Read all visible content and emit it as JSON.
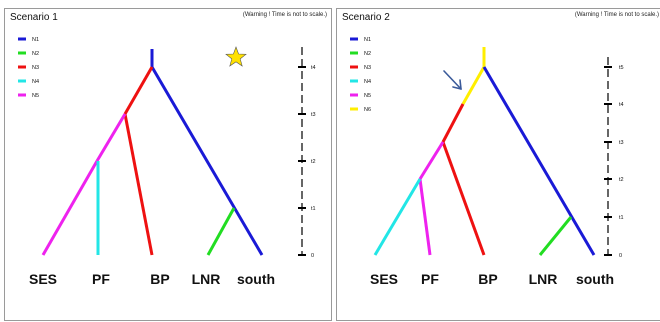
{
  "colors": {
    "N1": "#1a1ad6",
    "N2": "#22dd22",
    "N3": "#ee1111",
    "N4": "#22e6e6",
    "N5": "#ee22ee",
    "N6": "#ffee00",
    "star": "#ffe100",
    "arrow": "#3a5a9a",
    "axis": "#000000"
  },
  "panels": [
    {
      "title": "Scenario 1",
      "warning": "(Warning ! Time is not to scale.)",
      "legend": [
        "N1",
        "N2",
        "N3",
        "N4",
        "N5"
      ],
      "time_axis": [
        "t4",
        "t3",
        "t2",
        "t1",
        "0"
      ],
      "tips": [
        "SES",
        "PF",
        "BP",
        "LNR",
        "south"
      ],
      "marker": "star-icon"
    },
    {
      "title": "Scenario 2",
      "warning": "(Warning ! Time is not to scale.)",
      "legend": [
        "N1",
        "N2",
        "N3",
        "N4",
        "N5",
        "N6"
      ],
      "time_axis": [
        "t5",
        "t4",
        "t3",
        "t2",
        "t1",
        "0"
      ],
      "tips": [
        "SES",
        "PF",
        "BP",
        "LNR",
        "south"
      ],
      "marker": "arrow-icon"
    }
  ]
}
